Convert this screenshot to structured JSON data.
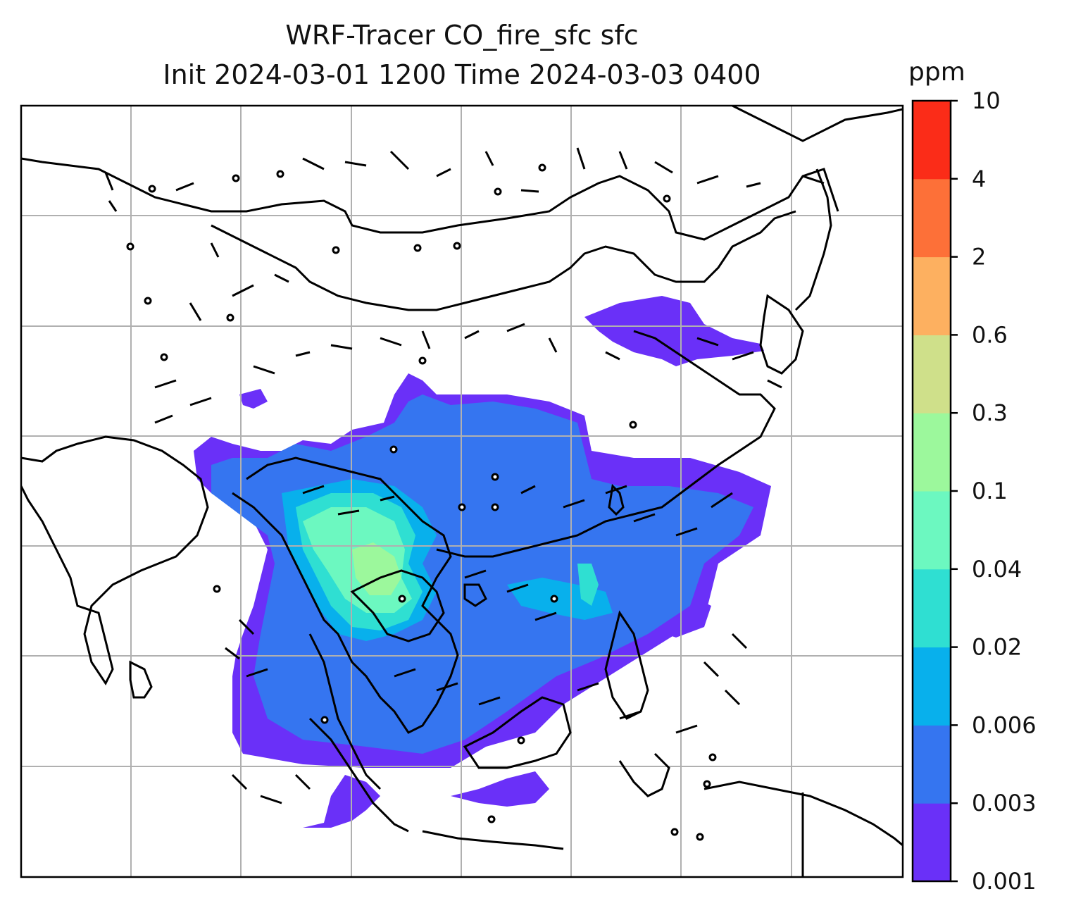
{
  "title_line1": "WRF-Tracer CO_fire_sfc sfc",
  "title_line2": "Init 2024-03-01 1200 Time 2024-03-03 0400",
  "colorbar": {
    "unit": "ppm",
    "ticks": [
      "0.001",
      "0.003",
      "0.006",
      "0.02",
      "0.04",
      "0.1",
      "0.3",
      "0.6",
      "2",
      "4",
      "10"
    ],
    "colors": [
      "#6a30f8",
      "#3575f0",
      "#08b0ec",
      "#2fdfd2",
      "#6cf8c0",
      "#9cf89c",
      "#cfe08a",
      "#fdb060",
      "#fd7038",
      "#fb2c18"
    ]
  },
  "map": {
    "background": "#ffffff",
    "gridline_color": "#b0b0b0",
    "coastline_color": "#000000",
    "wind_barb_color": "#000000"
  }
}
